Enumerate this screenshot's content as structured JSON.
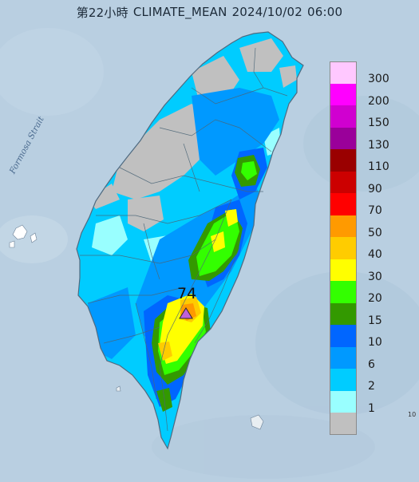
{
  "header": {
    "period": "第22小時",
    "product": "CLIMATE_MEAN",
    "date": "2024/10/02",
    "time": "06:00"
  },
  "map": {
    "sea_label": "Formosa Strait",
    "peak_marker": {
      "value": "74",
      "color": "#c060d8"
    },
    "edge_label": "10"
  },
  "legend": {
    "items": [
      {
        "label": "300",
        "color": "#ffc8ff"
      },
      {
        "label": "200",
        "color": "#ff00ff"
      },
      {
        "label": "150",
        "color": "#d000d0"
      },
      {
        "label": "130",
        "color": "#9a009a"
      },
      {
        "label": "110",
        "color": "#9a0000"
      },
      {
        "label": "90",
        "color": "#cc0000"
      },
      {
        "label": "70",
        "color": "#ff0000"
      },
      {
        "label": "50",
        "color": "#ff9a00"
      },
      {
        "label": "40",
        "color": "#ffcc00"
      },
      {
        "label": "30",
        "color": "#ffff00"
      },
      {
        "label": "20",
        "color": "#33ff00"
      },
      {
        "label": "15",
        "color": "#339900"
      },
      {
        "label": "10",
        "color": "#0066ff"
      },
      {
        "label": "6",
        "color": "#0099ff"
      },
      {
        "label": "2",
        "color": "#00ccff"
      },
      {
        "label": "1",
        "color": "#99ffff"
      },
      {
        "label": "",
        "color": "#c0c0c0"
      }
    ]
  },
  "colors": {
    "sea": "#b9cfe1",
    "coast_line": "#4f6a80",
    "boundary_line": "#4b6677"
  }
}
